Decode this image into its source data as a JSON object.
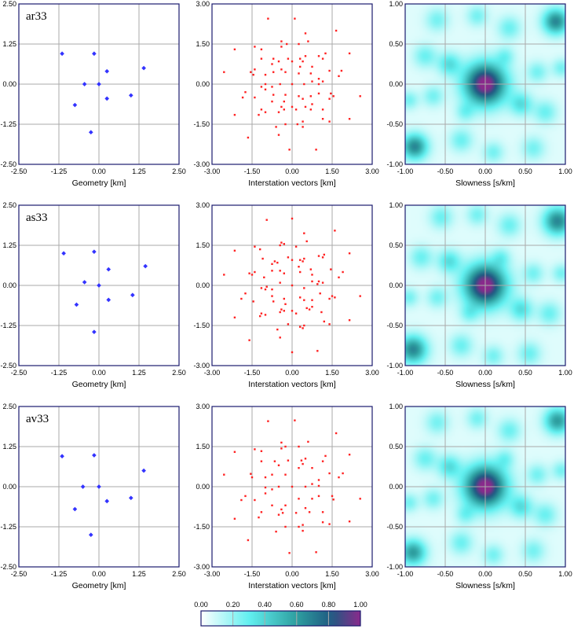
{
  "colors": {
    "geometry_marker": "#3333ff",
    "vector_marker": "#ff2222",
    "frame": "#1a1a6e",
    "grid": "#aaaaaa",
    "colormap": [
      "#ffffff",
      "#62f0f0",
      "#2e9fa0",
      "#205a82",
      "#8a2a8c"
    ]
  },
  "chart_data": [
    {
      "row": 0,
      "array_name": "ar33",
      "geometry": {
        "type": "scatter",
        "xlabel": "Geometry [km]",
        "xlim": [
          -2.5,
          2.5
        ],
        "ylim": [
          -2.5,
          2.5
        ],
        "xticks": [
          "-2.50",
          "-1.25",
          "0.00",
          "1.25",
          "2.50"
        ],
        "yticks": [
          "-2.50",
          "-1.25",
          "0.00",
          "1.25",
          "2.50"
        ],
        "grid": true,
        "points": [
          [
            -1.15,
            0.95
          ],
          [
            -0.15,
            0.95
          ],
          [
            0.25,
            0.4
          ],
          [
            1.4,
            0.5
          ],
          [
            -0.45,
            0
          ],
          [
            0,
            0
          ],
          [
            1.0,
            -0.35
          ],
          [
            0.25,
            -0.45
          ],
          [
            -0.75,
            -0.65
          ],
          [
            -0.25,
            -1.5
          ]
        ]
      },
      "vectors": {
        "type": "scatter",
        "xlabel": "Interstation vectors [km]",
        "xlim": [
          -3,
          3
        ],
        "ylim": [
          -3,
          3
        ],
        "xticks": [
          "-3.00",
          "-1.50",
          "0.00",
          "1.50",
          "3.00"
        ],
        "yticks": [
          "-3.00",
          "-1.50",
          "0.00",
          "1.50",
          "3.00"
        ],
        "grid": true,
        "geometry_ref": 0
      },
      "slowness": {
        "type": "heatmap",
        "xlabel": "Slowness [s/km]",
        "xlim": [
          -1,
          1
        ],
        "ylim": [
          -1,
          1
        ],
        "xticks": [
          "-1.00",
          "-0.50",
          "0.00",
          "0.50",
          "1.00"
        ],
        "yticks": [
          "-1.00",
          "-0.50",
          "0.00",
          "0.50",
          "1.00"
        ],
        "grid": true,
        "peaks": [
          [
            0,
            0,
            1.0,
            0.18
          ],
          [
            0.88,
            0.78,
            0.62,
            0.11
          ],
          [
            -0.88,
            -0.78,
            0.62,
            0.11
          ],
          [
            -0.45,
            0.25,
            0.3,
            0.1
          ],
          [
            0.45,
            -0.25,
            0.3,
            0.1
          ],
          [
            0.3,
            0.7,
            0.22,
            0.1
          ],
          [
            -0.3,
            -0.7,
            0.22,
            0.1
          ],
          [
            -0.75,
            0.35,
            0.22,
            0.1
          ],
          [
            0.75,
            -0.35,
            0.22,
            0.1
          ],
          [
            0.25,
            0.35,
            0.18,
            0.08
          ],
          [
            -0.25,
            -0.35,
            0.18,
            0.08
          ],
          [
            0.65,
            0.15,
            0.2,
            0.09
          ],
          [
            -0.65,
            -0.15,
            0.2,
            0.09
          ],
          [
            -0.1,
            0.85,
            0.2,
            0.09
          ],
          [
            0.1,
            -0.85,
            0.2,
            0.09
          ],
          [
            0.95,
            0.2,
            0.2,
            0.08
          ],
          [
            -0.95,
            -0.2,
            0.2,
            0.08
          ],
          [
            -0.6,
            0.8,
            0.2,
            0.1
          ],
          [
            0.6,
            -0.8,
            0.2,
            0.1
          ]
        ]
      }
    },
    {
      "row": 1,
      "array_name": "as33",
      "geometry": {
        "type": "scatter",
        "xlabel": "Geometry [km]",
        "xlim": [
          -2.5,
          2.5
        ],
        "ylim": [
          -2.5,
          2.5
        ],
        "xticks": [
          "-2.50",
          "-1.25",
          "0.00",
          "1.25",
          "2.50"
        ],
        "yticks": [
          "-2.50",
          "-1.25",
          "0.00",
          "1.25",
          "2.50"
        ],
        "grid": true,
        "points": [
          [
            -1.1,
            1.0
          ],
          [
            -0.15,
            1.05
          ],
          [
            0.3,
            0.5
          ],
          [
            1.45,
            0.6
          ],
          [
            -0.45,
            0.1
          ],
          [
            0,
            0
          ],
          [
            1.05,
            -0.3
          ],
          [
            0.3,
            -0.45
          ],
          [
            -0.7,
            -0.6
          ],
          [
            -0.15,
            -1.45
          ]
        ]
      },
      "vectors": {
        "type": "scatter",
        "xlabel": "Interstation vectors [km]",
        "xlim": [
          -3,
          3
        ],
        "ylim": [
          -3,
          3
        ],
        "xticks": [
          "-3.00",
          "-1.50",
          "0.00",
          "1.50",
          "3.00"
        ],
        "yticks": [
          "-3.00",
          "-1.50",
          "0.00",
          "1.50",
          "3.00"
        ],
        "grid": true,
        "geometry_ref": 1
      },
      "slowness": {
        "type": "heatmap",
        "xlabel": "Slowness [s/km]",
        "xlim": [
          -1,
          1
        ],
        "ylim": [
          -1,
          1
        ],
        "xticks": [
          "-1.00",
          "-0.50",
          "0.00",
          "0.50",
          "1.00"
        ],
        "yticks": [
          "-1.00",
          "-0.50",
          "0.00",
          "0.50",
          "1.00"
        ],
        "grid": true,
        "peaks": [
          [
            0,
            0,
            1.0,
            0.18
          ],
          [
            0.9,
            0.8,
            0.62,
            0.12
          ],
          [
            -0.9,
            -0.8,
            0.62,
            0.12
          ],
          [
            -0.45,
            0.3,
            0.3,
            0.1
          ],
          [
            0.45,
            -0.3,
            0.3,
            0.1
          ],
          [
            0.3,
            0.75,
            0.22,
            0.1
          ],
          [
            -0.3,
            -0.75,
            0.22,
            0.1
          ],
          [
            -0.8,
            0.35,
            0.22,
            0.1
          ],
          [
            0.8,
            -0.35,
            0.22,
            0.1
          ],
          [
            0.2,
            0.35,
            0.18,
            0.08
          ],
          [
            -0.2,
            -0.35,
            0.18,
            0.08
          ],
          [
            0.6,
            0.15,
            0.2,
            0.09
          ],
          [
            -0.6,
            -0.15,
            0.2,
            0.09
          ],
          [
            -0.1,
            0.88,
            0.2,
            0.09
          ],
          [
            0.1,
            -0.88,
            0.2,
            0.09
          ],
          [
            0.95,
            0.15,
            0.2,
            0.08
          ],
          [
            -0.95,
            -0.15,
            0.2,
            0.08
          ],
          [
            -0.55,
            0.85,
            0.22,
            0.1
          ],
          [
            0.55,
            -0.85,
            0.22,
            0.1
          ]
        ]
      }
    },
    {
      "row": 2,
      "array_name": "av33",
      "geometry": {
        "type": "scatter",
        "xlabel": "Geometry [km]",
        "xlim": [
          -2.5,
          2.5
        ],
        "ylim": [
          -2.5,
          2.5
        ],
        "xticks": [
          "-2.50",
          "-1.25",
          "0.00",
          "1.25",
          "2.50"
        ],
        "yticks": [
          "-2.50",
          "-1.25",
          "0.00",
          "1.25",
          "2.50"
        ],
        "grid": true,
        "points": [
          [
            -1.15,
            0.95
          ],
          [
            -0.15,
            0.98
          ],
          [
            0.25,
            -0.45
          ],
          [
            1.4,
            0.5
          ],
          [
            -0.5,
            0
          ],
          [
            0,
            0
          ],
          [
            1.0,
            -0.35
          ],
          [
            -0.75,
            -0.7
          ],
          [
            -0.25,
            -1.5
          ]
        ]
      },
      "vectors": {
        "type": "scatter",
        "xlabel": "Interstation vectors [km]",
        "xlim": [
          -3,
          3
        ],
        "ylim": [
          -3,
          3
        ],
        "xticks": [
          "-3.00",
          "-1.50",
          "0.00",
          "1.50",
          "3.00"
        ],
        "yticks": [
          "-3.00",
          "-1.50",
          "0.00",
          "1.50",
          "3.00"
        ],
        "grid": true,
        "geometry_ref": 2
      },
      "slowness": {
        "type": "heatmap",
        "xlabel": "Slowness [s/km]",
        "xlim": [
          -1,
          1
        ],
        "ylim": [
          -1,
          1
        ],
        "xticks": [
          "-1.00",
          "-0.50",
          "0.00",
          "0.50",
          "1.00"
        ],
        "yticks": [
          "-1.00",
          "-0.50",
          "0.00",
          "0.50",
          "1.00"
        ],
        "grid": true,
        "peaks": [
          [
            0,
            0,
            1.0,
            0.18
          ],
          [
            0.9,
            0.82,
            0.55,
            0.11
          ],
          [
            -0.9,
            -0.82,
            0.55,
            0.11
          ],
          [
            -0.45,
            0.25,
            0.3,
            0.1
          ],
          [
            0.45,
            -0.25,
            0.3,
            0.1
          ],
          [
            0.3,
            0.7,
            0.22,
            0.1
          ],
          [
            -0.3,
            -0.7,
            0.22,
            0.1
          ],
          [
            -0.75,
            0.35,
            0.22,
            0.1
          ],
          [
            0.75,
            -0.35,
            0.22,
            0.1
          ],
          [
            0.25,
            0.35,
            0.18,
            0.08
          ],
          [
            -0.25,
            -0.35,
            0.18,
            0.08
          ],
          [
            0.65,
            0.15,
            0.2,
            0.09
          ],
          [
            -0.65,
            -0.15,
            0.2,
            0.09
          ],
          [
            -0.1,
            0.85,
            0.2,
            0.09
          ],
          [
            0.1,
            -0.85,
            0.2,
            0.09
          ],
          [
            0.95,
            0.2,
            0.2,
            0.08
          ],
          [
            -0.95,
            -0.2,
            0.2,
            0.08
          ],
          [
            -0.6,
            0.8,
            0.2,
            0.1
          ],
          [
            0.6,
            -0.8,
            0.2,
            0.1
          ]
        ]
      }
    },
    {
      "type": "colorbar",
      "ticks": [
        "0.00",
        "0.20",
        "0.40",
        "0.60",
        "0.80",
        "1.00"
      ],
      "range": [
        0,
        1
      ]
    }
  ]
}
